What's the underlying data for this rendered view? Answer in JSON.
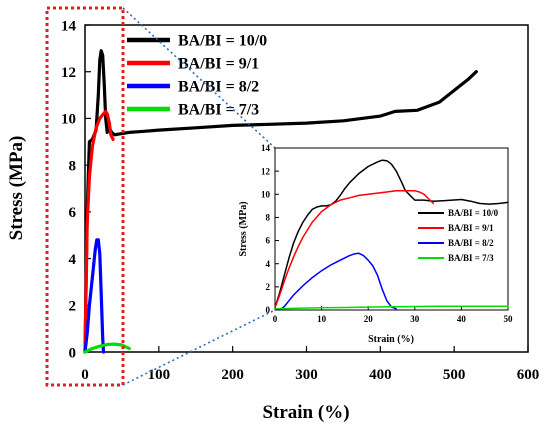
{
  "chart_data": [
    {
      "type": "line",
      "id": "main",
      "xlabel": "Strain (%)",
      "ylabel": "Stress (MPa)",
      "xlim": [
        0,
        600
      ],
      "ylim": [
        0,
        14
      ],
      "xticks": [
        0,
        100,
        200,
        300,
        400,
        500,
        600
      ],
      "yticks": [
        0,
        2,
        4,
        6,
        8,
        10,
        12,
        14
      ],
      "xtick_labels": [
        "0",
        "100",
        "200",
        "300",
        "400",
        "500",
        "600"
      ],
      "ytick_labels": [
        "0",
        "2",
        "4",
        "6",
        "8",
        "10",
        "12",
        "14"
      ],
      "grid": false,
      "legend_position": "top-left",
      "series": [
        {
          "name": "BA/BI = 10/0",
          "color": "#000000",
          "x": [
            0,
            3,
            6,
            10,
            15,
            18,
            20,
            22,
            24,
            26,
            28,
            30,
            33,
            36,
            40,
            50,
            60,
            80,
            100,
            150,
            200,
            250,
            300,
            350,
            400,
            420,
            450,
            480,
            500,
            520,
            530
          ],
          "y": [
            0,
            6,
            9,
            9.1,
            9.5,
            11,
            12.5,
            12.9,
            12.7,
            11.5,
            10,
            9.4,
            9.6,
            9.4,
            9.3,
            9.35,
            9.4,
            9.45,
            9.5,
            9.6,
            9.7,
            9.75,
            9.8,
            9.9,
            10.1,
            10.3,
            10.35,
            10.7,
            11.2,
            11.7,
            12.0
          ]
        },
        {
          "name": "BA/BI = 9/1",
          "color": "#ff0000",
          "x": [
            0,
            3,
            6,
            10,
            15,
            20,
            25,
            28,
            30,
            33,
            35,
            38
          ],
          "y": [
            0,
            5.5,
            7.5,
            8.8,
            9.6,
            10.0,
            10.2,
            10.3,
            10.2,
            9.8,
            9.3,
            9.1
          ]
        },
        {
          "name": "BA/BI = 8/2",
          "color": "#0000ff",
          "x": [
            0,
            3,
            6,
            10,
            14,
            16,
            18,
            20,
            22,
            24,
            25
          ],
          "y": [
            0,
            0.8,
            2.0,
            3.2,
            4.4,
            4.8,
            4.8,
            4.2,
            2.5,
            0.6,
            0
          ]
        },
        {
          "name": "BA/BI = 7/3",
          "color": "#00dd00",
          "x": [
            0,
            10,
            20,
            30,
            40,
            50,
            60
          ],
          "y": [
            0,
            0.15,
            0.25,
            0.32,
            0.34,
            0.3,
            0.15
          ]
        }
      ]
    },
    {
      "type": "line",
      "id": "inset",
      "xlabel": "Strain (%)",
      "ylabel": "Stress (MPa)",
      "xlim": [
        0,
        50
      ],
      "ylim": [
        0,
        14
      ],
      "xticks": [
        0,
        10,
        20,
        30,
        40,
        50
      ],
      "yticks": [
        0,
        2,
        4,
        6,
        8,
        10,
        12,
        14
      ],
      "xtick_labels": [
        "0",
        "10",
        "20",
        "30",
        "40",
        "50"
      ],
      "ytick_labels": [
        "0",
        "2",
        "4",
        "6",
        "8",
        "10",
        "12",
        "14"
      ],
      "grid": false,
      "legend_position": "middle-right",
      "series": [
        {
          "name": "BA/BI = 10/0",
          "color": "#000000",
          "x": [
            0,
            1,
            2,
            3,
            4,
            5,
            6,
            7,
            8,
            9,
            10,
            11,
            12,
            13,
            14,
            15,
            16,
            18,
            20,
            22,
            23,
            24,
            25,
            26,
            27,
            28,
            30,
            32,
            34,
            36,
            38,
            40,
            42,
            44,
            46,
            48,
            50
          ],
          "y": [
            0.2,
            1.5,
            3.0,
            4.5,
            5.8,
            6.8,
            7.6,
            8.2,
            8.7,
            8.9,
            9.0,
            9.0,
            9.1,
            9.4,
            9.9,
            10.5,
            11.0,
            11.8,
            12.4,
            12.8,
            12.95,
            12.9,
            12.6,
            12.0,
            11.2,
            10.3,
            9.5,
            9.5,
            9.4,
            9.45,
            9.5,
            9.55,
            9.4,
            9.2,
            9.15,
            9.2,
            9.3
          ]
        },
        {
          "name": "BA/BI = 9/1",
          "color": "#ff0000",
          "x": [
            0,
            1,
            2,
            3,
            4,
            5,
            6,
            8,
            10,
            12,
            14,
            16,
            18,
            20,
            22,
            24,
            26,
            28,
            30,
            31,
            32,
            33,
            34
          ],
          "y": [
            0.2,
            1.3,
            2.5,
            3.6,
            4.6,
            5.5,
            6.3,
            7.6,
            8.5,
            9.1,
            9.5,
            9.7,
            9.9,
            10.0,
            10.1,
            10.2,
            10.3,
            10.3,
            10.3,
            10.2,
            10.0,
            9.6,
            9.2
          ]
        },
        {
          "name": "BA/BI = 8/2",
          "color": "#0000ff",
          "x": [
            1,
            2,
            3,
            4,
            6,
            8,
            10,
            12,
            14,
            16,
            17,
            18,
            19,
            20,
            21,
            22,
            23,
            24,
            25,
            26
          ],
          "y": [
            0,
            0.3,
            0.8,
            1.3,
            2.1,
            2.8,
            3.4,
            3.9,
            4.3,
            4.7,
            4.85,
            4.9,
            4.7,
            4.3,
            3.8,
            3.0,
            1.8,
            0.8,
            0.25,
            0.1
          ]
        },
        {
          "name": "BA/BI = 7/3",
          "color": "#00dd00",
          "x": [
            0,
            5,
            10,
            15,
            20,
            25,
            30,
            35,
            40,
            45,
            50
          ],
          "y": [
            0.1,
            0.15,
            0.2,
            0.22,
            0.25,
            0.28,
            0.3,
            0.32,
            0.33,
            0.33,
            0.33
          ]
        }
      ]
    }
  ]
}
